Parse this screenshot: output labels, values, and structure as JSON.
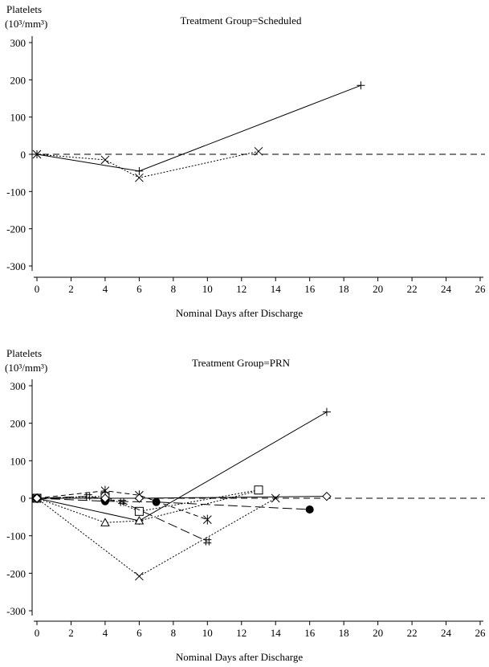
{
  "chart_data": [
    {
      "type": "line",
      "title": "Treatment Group=Scheduled",
      "ylabel": "Platelets",
      "ylabel_unit": "(10³/mm³)",
      "xlabel": "Nominal Days after Discharge",
      "xlim": [
        0,
        26
      ],
      "ylim": [
        -300,
        300
      ],
      "xticks": [
        0,
        2,
        4,
        6,
        8,
        10,
        12,
        14,
        16,
        18,
        20,
        22,
        24,
        26
      ],
      "yticks": [
        300,
        200,
        100,
        0,
        -100,
        -200,
        -300
      ],
      "reference_line": 0,
      "series": [
        {
          "name": "plus",
          "marker": "+",
          "dash": "solid",
          "x": [
            0,
            6,
            19
          ],
          "y": [
            0,
            -45,
            185
          ]
        },
        {
          "name": "x",
          "marker": "x",
          "dash": "dotted",
          "x": [
            0,
            4,
            6,
            13
          ],
          "y": [
            0,
            -15,
            -63,
            8
          ]
        }
      ]
    },
    {
      "type": "line",
      "title": "Treatment Group=PRN",
      "ylabel": "Platelets",
      "ylabel_unit": "(10³/mm³)",
      "xlabel": "Nominal Days after Discharge",
      "xlim": [
        0,
        26
      ],
      "ylim": [
        -300,
        300
      ],
      "xticks": [
        0,
        2,
        4,
        6,
        8,
        10,
        12,
        14,
        16,
        18,
        20,
        22,
        24,
        26
      ],
      "yticks": [
        300,
        200,
        100,
        0,
        -100,
        -200,
        -300
      ],
      "reference_line": 0,
      "series": [
        {
          "name": "plus",
          "marker": "+",
          "dash": "solid",
          "x": [
            0,
            6,
            17
          ],
          "y": [
            0,
            -60,
            230
          ]
        },
        {
          "name": "x",
          "marker": "x",
          "dash": "dotted",
          "x": [
            0,
            6,
            14
          ],
          "y": [
            0,
            -208,
            0
          ]
        },
        {
          "name": "triangle",
          "marker": "triangle",
          "dash": "dotted",
          "x": [
            0,
            4,
            6,
            13
          ],
          "y": [
            0,
            -65,
            -60,
            20
          ]
        },
        {
          "name": "square",
          "marker": "square",
          "dash": "dotted",
          "x": [
            0,
            4,
            6,
            13
          ],
          "y": [
            0,
            5,
            -35,
            22
          ]
        },
        {
          "name": "asterisk",
          "marker": "asterisk",
          "dash": "dashed",
          "x": [
            0,
            4,
            6,
            10
          ],
          "y": [
            0,
            20,
            8,
            -57
          ]
        },
        {
          "name": "hash",
          "marker": "hash",
          "dash": "longdash",
          "x": [
            0,
            3,
            5,
            10
          ],
          "y": [
            0,
            5,
            -10,
            -115
          ]
        },
        {
          "name": "filled-circle",
          "marker": "circle",
          "dash": "longdash",
          "x": [
            0,
            4,
            7,
            16
          ],
          "y": [
            0,
            -8,
            -10,
            -30
          ]
        },
        {
          "name": "diamond",
          "marker": "diamond",
          "dash": "solid",
          "x": [
            0,
            4,
            6,
            17
          ],
          "y": [
            0,
            0,
            0,
            5
          ]
        }
      ]
    }
  ]
}
